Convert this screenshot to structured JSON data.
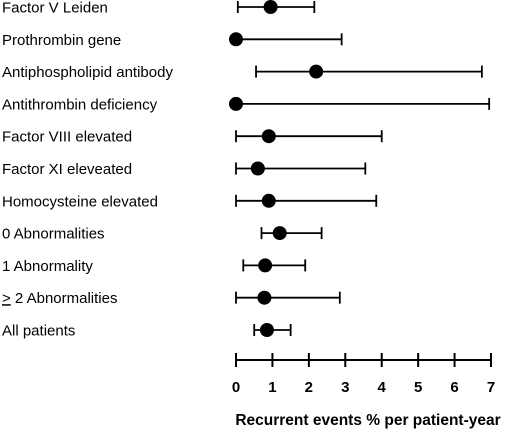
{
  "chart_data": {
    "type": "scatter",
    "subtype": "forest-plot",
    "title": "",
    "xlabel": "Recurrent events % per patient-year",
    "ylabel": "",
    "xlim": [
      0,
      7
    ],
    "x_ticks": [
      0,
      1,
      2,
      3,
      4,
      5,
      6,
      7
    ],
    "grid": false,
    "legend": "none",
    "marker_color": "#000000",
    "rows": [
      {
        "label": "Factor V Leiden",
        "prefix": "",
        "estimate": 0.95,
        "lower": 0.05,
        "upper": 2.15
      },
      {
        "label": "Prothrombin gene",
        "prefix": "",
        "estimate": 0.0,
        "lower": 0.0,
        "upper": 2.9
      },
      {
        "label": "Antiphospholipid antibody",
        "prefix": "",
        "estimate": 2.2,
        "lower": 0.55,
        "upper": 6.75
      },
      {
        "label": "Antithrombin deficiency",
        "prefix": "",
        "estimate": 0.0,
        "lower": 0.0,
        "upper": 6.95
      },
      {
        "label": "Factor VIII elevated",
        "prefix": "",
        "estimate": 0.9,
        "lower": 0.0,
        "upper": 4.0
      },
      {
        "label": "Factor XI eleveated",
        "prefix": "",
        "estimate": 0.6,
        "lower": 0.0,
        "upper": 3.55
      },
      {
        "label": "Homocysteine elevated",
        "prefix": "",
        "estimate": 0.9,
        "lower": 0.0,
        "upper": 3.85
      },
      {
        "label": "0 Abnormalities",
        "prefix": "",
        "estimate": 1.2,
        "lower": 0.7,
        "upper": 2.35
      },
      {
        "label": "1 Abnormality",
        "prefix": "",
        "estimate": 0.8,
        "lower": 0.2,
        "upper": 1.9
      },
      {
        "label": " 2 Abnormalities",
        "prefix": ">",
        "estimate": 0.78,
        "lower": 0.0,
        "upper": 2.85
      },
      {
        "label": "All patients",
        "prefix": "",
        "estimate": 0.85,
        "lower": 0.5,
        "upper": 1.5
      }
    ]
  }
}
